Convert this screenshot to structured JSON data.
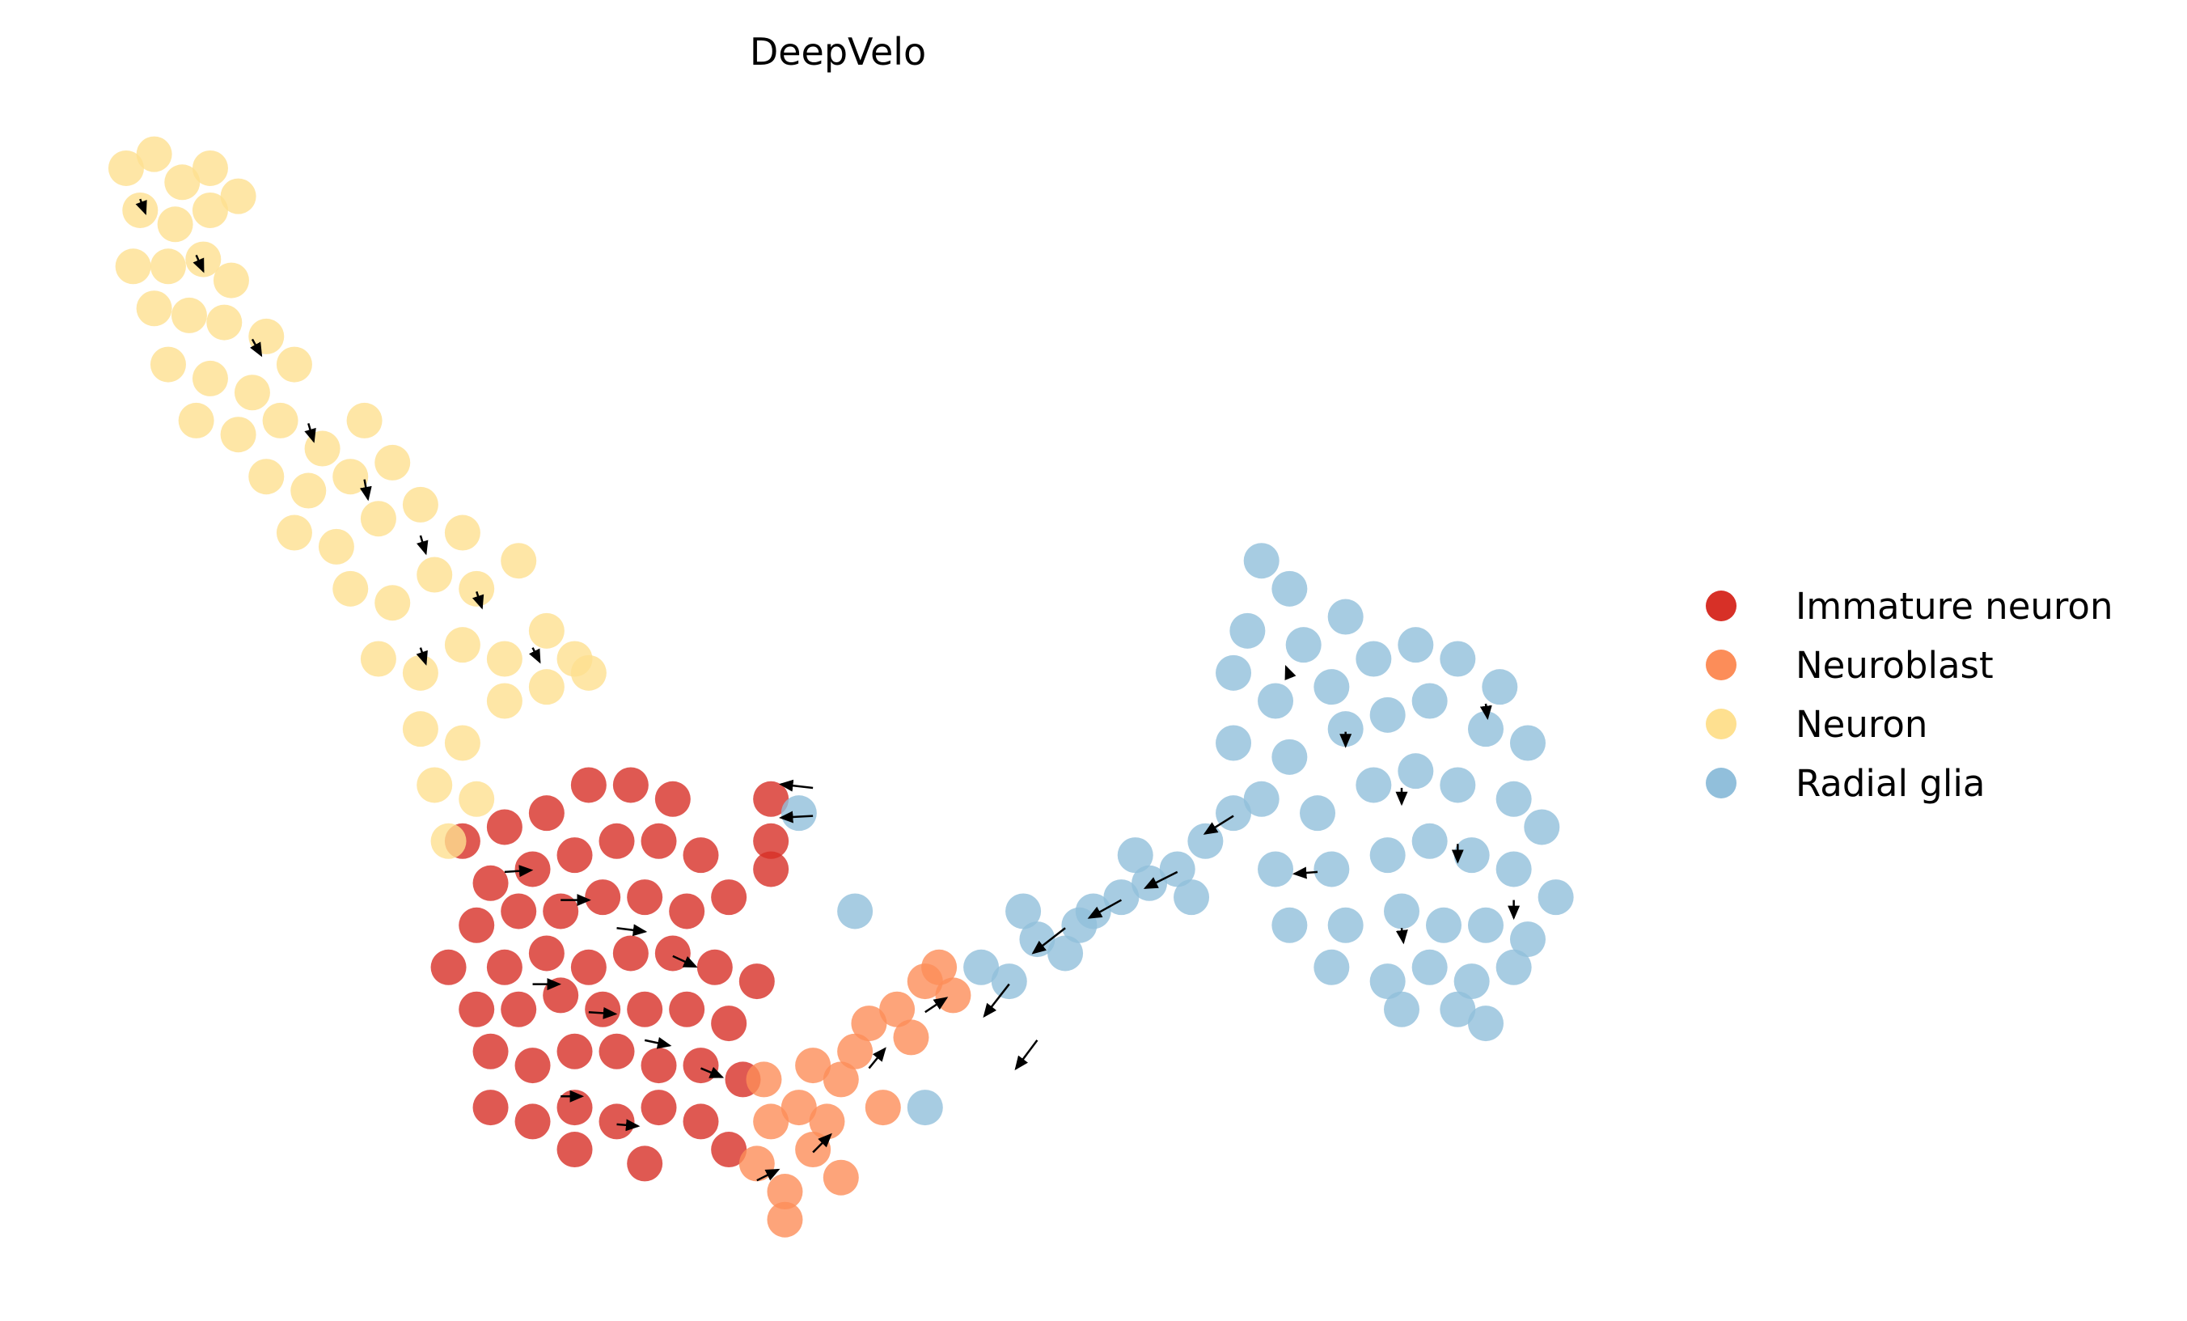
{
  "chart_data": {
    "type": "scatter",
    "title": "DeepVelo",
    "xlabel": "",
    "ylabel": "",
    "axes_visible": false,
    "grid": false,
    "legend_position": "right",
    "xlim": [
      0,
      156
    ],
    "ylim": [
      0,
      94.2
    ],
    "series": [
      {
        "name": "Immature neuron",
        "color": "#d73027",
        "points": [
          [
            33,
            34.2
          ],
          [
            36,
            35.2
          ],
          [
            39,
            36.2
          ],
          [
            42,
            38.2
          ],
          [
            45,
            38.2
          ],
          [
            48,
            37.2
          ],
          [
            35,
            31.2
          ],
          [
            38,
            32.2
          ],
          [
            41,
            33.2
          ],
          [
            44,
            34.2
          ],
          [
            47,
            34.2
          ],
          [
            50,
            33.2
          ],
          [
            34,
            28.2
          ],
          [
            37,
            29.2
          ],
          [
            40,
            29.2
          ],
          [
            43,
            30.2
          ],
          [
            46,
            30.2
          ],
          [
            49,
            29.2
          ],
          [
            52,
            30.2
          ],
          [
            55,
            32.2
          ],
          [
            32,
            25.2
          ],
          [
            36,
            25.2
          ],
          [
            39,
            26.2
          ],
          [
            42,
            25.2
          ],
          [
            45,
            26.2
          ],
          [
            48,
            26.2
          ],
          [
            51,
            25.2
          ],
          [
            54,
            24.2
          ],
          [
            34,
            22.2
          ],
          [
            37,
            22.2
          ],
          [
            40,
            23.2
          ],
          [
            43,
            22.2
          ],
          [
            46,
            22.2
          ],
          [
            49,
            22.2
          ],
          [
            52,
            21.2
          ],
          [
            35,
            19.2
          ],
          [
            38,
            18.2
          ],
          [
            41,
            19.2
          ],
          [
            44,
            19.2
          ],
          [
            47,
            18.2
          ],
          [
            50,
            18.2
          ],
          [
            53,
            17.2
          ],
          [
            35,
            15.2
          ],
          [
            38,
            14.2
          ],
          [
            41,
            15.2
          ],
          [
            44,
            14.2
          ],
          [
            47,
            15.2
          ],
          [
            50,
            14.2
          ],
          [
            52,
            12.2
          ],
          [
            41,
            12.2
          ],
          [
            46,
            11.2
          ],
          [
            55,
            37.2
          ],
          [
            55,
            34.2
          ]
        ]
      },
      {
        "name": "Neuroblast",
        "color": "#fc8d59",
        "points": [
          [
            54,
            11.2
          ],
          [
            56,
            9.2
          ],
          [
            58,
            12.2
          ],
          [
            55,
            14.2
          ],
          [
            57,
            15.2
          ],
          [
            59,
            14.2
          ],
          [
            60,
            17.2
          ],
          [
            58,
            18.2
          ],
          [
            61,
            19.2
          ],
          [
            62,
            21.2
          ],
          [
            64,
            22.2
          ],
          [
            66,
            24.2
          ],
          [
            65,
            20.2
          ],
          [
            63,
            15.2
          ],
          [
            56,
            7.2
          ],
          [
            60,
            10.2
          ],
          [
            54.5,
            17.2
          ],
          [
            68,
            23.2
          ],
          [
            67,
            25.2
          ]
        ]
      },
      {
        "name": "Neuron",
        "color": "#fee090",
        "points": [
          [
            9,
            82.2
          ],
          [
            11,
            83.2
          ],
          [
            13,
            81.2
          ],
          [
            15,
            82.2
          ],
          [
            10,
            79.2
          ],
          [
            12.5,
            78.2
          ],
          [
            15,
            79.2
          ],
          [
            17,
            80.2
          ],
          [
            9.5,
            75.2
          ],
          [
            12,
            75.2
          ],
          [
            14.5,
            75.7
          ],
          [
            16.5,
            74.2
          ],
          [
            11,
            72.2
          ],
          [
            13.5,
            71.7
          ],
          [
            16,
            71.2
          ],
          [
            19,
            70.2
          ],
          [
            12,
            68.2
          ],
          [
            15,
            67.2
          ],
          [
            18,
            66.2
          ],
          [
            21,
            68.2
          ],
          [
            14,
            64.2
          ],
          [
            17,
            63.2
          ],
          [
            20,
            64.2
          ],
          [
            23,
            62.2
          ],
          [
            26,
            64.2
          ],
          [
            19,
            60.2
          ],
          [
            22,
            59.2
          ],
          [
            25,
            60.2
          ],
          [
            28,
            61.2
          ],
          [
            21,
            56.2
          ],
          [
            24,
            55.2
          ],
          [
            27,
            57.2
          ],
          [
            30,
            58.2
          ],
          [
            33,
            56.2
          ],
          [
            25,
            52.2
          ],
          [
            28,
            51.2
          ],
          [
            31,
            53.2
          ],
          [
            34,
            52.2
          ],
          [
            37,
            54.2
          ],
          [
            27,
            47.2
          ],
          [
            30,
            46.2
          ],
          [
            33,
            48.2
          ],
          [
            36,
            47.2
          ],
          [
            39,
            49.2
          ],
          [
            41,
            47.2
          ],
          [
            30,
            42.2
          ],
          [
            33,
            41.2
          ],
          [
            36,
            44.2
          ],
          [
            39,
            45.2
          ],
          [
            42,
            46.2
          ],
          [
            31,
            38.2
          ],
          [
            34,
            37.2
          ],
          [
            32,
            34.2
          ]
        ]
      },
      {
        "name": "Radial glia",
        "color": "#91bfdb",
        "points": [
          [
            70,
            25.2
          ],
          [
            72,
            24.2
          ],
          [
            74,
            27.2
          ],
          [
            76,
            26.2
          ],
          [
            78,
            29.2
          ],
          [
            80,
            30.2
          ],
          [
            82,
            31.2
          ],
          [
            84,
            32.2
          ],
          [
            86,
            34.2
          ],
          [
            88,
            36.2
          ],
          [
            73,
            29.2
          ],
          [
            77,
            28.2
          ],
          [
            81,
            33.2
          ],
          [
            85,
            30.2
          ],
          [
            66,
            15.2
          ],
          [
            57,
            36.2
          ],
          [
            61,
            29.2
          ],
          [
            90,
            54.2
          ],
          [
            92,
            52.2
          ],
          [
            89,
            49.2
          ],
          [
            93,
            48.2
          ],
          [
            96,
            50.2
          ],
          [
            88,
            46.2
          ],
          [
            91,
            44.2
          ],
          [
            95,
            45.2
          ],
          [
            98,
            47.2
          ],
          [
            101,
            48.2
          ],
          [
            104,
            47.2
          ],
          [
            107,
            45.2
          ],
          [
            88,
            41.2
          ],
          [
            92,
            40.2
          ],
          [
            96,
            42.2
          ],
          [
            99,
            43.2
          ],
          [
            102,
            44.2
          ],
          [
            106,
            42.2
          ],
          [
            109,
            41.2
          ],
          [
            90,
            37.2
          ],
          [
            94,
            36.2
          ],
          [
            98,
            38.2
          ],
          [
            101,
            39.2
          ],
          [
            104,
            38.2
          ],
          [
            108,
            37.2
          ],
          [
            110,
            35.2
          ],
          [
            91,
            32.2
          ],
          [
            95,
            32.2
          ],
          [
            99,
            33.2
          ],
          [
            102,
            34.2
          ],
          [
            105,
            33.2
          ],
          [
            108,
            32.2
          ],
          [
            111,
            30.2
          ],
          [
            92,
            28.2
          ],
          [
            96,
            28.2
          ],
          [
            100,
            29.2
          ],
          [
            103,
            28.2
          ],
          [
            106,
            28.2
          ],
          [
            109,
            27.2
          ],
          [
            95,
            25.2
          ],
          [
            99,
            24.2
          ],
          [
            102,
            25.2
          ],
          [
            105,
            24.2
          ],
          [
            108,
            25.2
          ],
          [
            100,
            22.2
          ],
          [
            104,
            22.2
          ],
          [
            106,
            21.2
          ]
        ]
      }
    ],
    "velocity_arrows": [
      [
        10,
        80,
        0.3,
        -0.8
      ],
      [
        14,
        76,
        0.4,
        -0.9
      ],
      [
        18,
        70,
        0.5,
        -0.9
      ],
      [
        22,
        64,
        0.3,
        -1.0
      ],
      [
        26,
        60,
        0.2,
        -1.1
      ],
      [
        30,
        56,
        0.3,
        -1.0
      ],
      [
        34,
        52,
        0.3,
        -0.9
      ],
      [
        38,
        48,
        0.4,
        -0.8
      ],
      [
        30,
        48,
        0.3,
        -0.9
      ],
      [
        36,
        32,
        1.5,
        0.1
      ],
      [
        40,
        30,
        1.6,
        0
      ],
      [
        44,
        28,
        1.6,
        -0.2
      ],
      [
        48,
        26,
        1.3,
        -0.6
      ],
      [
        38,
        24,
        1.5,
        0
      ],
      [
        42,
        22,
        1.5,
        -0.1
      ],
      [
        46,
        20,
        1.4,
        -0.3
      ],
      [
        50,
        18,
        1.2,
        -0.5
      ],
      [
        40,
        16,
        1.2,
        0
      ],
      [
        44,
        14,
        1.2,
        -0.1
      ],
      [
        54,
        10,
        1.2,
        0.6
      ],
      [
        58,
        12,
        1.0,
        1.0
      ],
      [
        62,
        18,
        0.9,
        1.1
      ],
      [
        66,
        22,
        1.2,
        0.8
      ],
      [
        72,
        24,
        -1.4,
        -1.8
      ],
      [
        76,
        28,
        -1.8,
        -1.4
      ],
      [
        80,
        30,
        -1.8,
        -1.0
      ],
      [
        84,
        32,
        -1.8,
        -0.9
      ],
      [
        88,
        36,
        -1.6,
        -1.0
      ],
      [
        74,
        20,
        -1.2,
        -1.6
      ],
      [
        58,
        38,
        -1.8,
        0.2
      ],
      [
        58,
        36,
        -1.8,
        -0.1
      ],
      [
        92,
        46,
        -0.2,
        0.5
      ],
      [
        96,
        42,
        0,
        -0.8
      ],
      [
        100,
        38,
        0,
        -0.9
      ],
      [
        104,
        34,
        0,
        -1.0
      ],
      [
        108,
        30,
        0,
        -1.0
      ],
      [
        94,
        32,
        -1.3,
        -0.1
      ],
      [
        100,
        28,
        0.1,
        -0.8
      ],
      [
        106,
        44,
        0.1,
        -0.8
      ]
    ]
  }
}
